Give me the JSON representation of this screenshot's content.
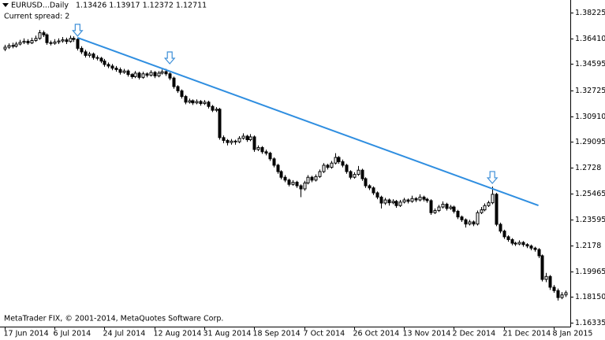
{
  "chart_data": {
    "type": "candlestick",
    "symbol_header": "EURUSD...Daily",
    "ohlc_header": "1.13426 1.13917 1.12372 1.12711",
    "spread": "Current spread: 2",
    "copyright": "MetaTrader FIX, © 2001-2014, MetaQuotes Software Corp.",
    "bull_color": "#ffffff",
    "bear_color": "#000000",
    "xlim": [
      -1.2,
      147.3
    ],
    "ylim": [
      1.1606,
      1.3911
    ],
    "yticks": [
      1.38225,
      {
        "value": 1.3641,
        "label": "1.36410"
      },
      1.34595,
      1.32725,
      {
        "value": 1.3091,
        "label": "1.30910"
      },
      1.29095,
      1.2728,
      1.25465,
      1.23595,
      1.2178,
      1.19965,
      {
        "value": 1.1815,
        "label": "1.18150"
      },
      1.16335
    ],
    "xticks": [
      {
        "value": 0,
        "label": "17 Jun 2014"
      },
      {
        "value": 13,
        "label": "6 Jul 2014"
      },
      {
        "value": 26,
        "label": "24 Jul 2014"
      },
      {
        "value": 39,
        "label": "12 Aug 2014"
      },
      {
        "value": 52,
        "label": "31 Aug 2014"
      },
      {
        "value": 65,
        "label": "18 Sep 2014"
      },
      {
        "value": 78,
        "label": "7 Oct 2014"
      },
      {
        "value": 91,
        "label": "26 Oct 2014"
      },
      {
        "value": 104,
        "label": "13 Nov 2014"
      },
      {
        "value": 117,
        "label": "2 Dec 2014"
      },
      {
        "value": 130,
        "label": "21 Dec 2014"
      },
      {
        "value": 143,
        "label": "8 Jan 2015"
      }
    ],
    "trendline": {
      "color": "#2f8ee0",
      "x": [
        19,
        139
      ],
      "y": [
        1.3645,
        1.2461
      ]
    },
    "arrows": {
      "color": "#3d8fd8",
      "x": [
        19,
        43,
        127
      ],
      "y": [
        1.3645,
        1.345,
        1.2606
      ]
    },
    "candles": [
      [
        1.3565,
        1.3595,
        1.355,
        1.3578
      ],
      [
        1.3578,
        1.3605,
        1.3565,
        1.359
      ],
      [
        1.359,
        1.361,
        1.357,
        1.3585
      ],
      [
        1.3585,
        1.3615,
        1.3575,
        1.36
      ],
      [
        1.36,
        1.363,
        1.359,
        1.3612
      ],
      [
        1.3612,
        1.364,
        1.36,
        1.362
      ],
      [
        1.362,
        1.3635,
        1.3595,
        1.3608
      ],
      [
        1.3608,
        1.3645,
        1.36,
        1.3625
      ],
      [
        1.3625,
        1.366,
        1.3615,
        1.364
      ],
      [
        1.364,
        1.37,
        1.363,
        1.368
      ],
      [
        1.368,
        1.3695,
        1.365,
        1.3665
      ],
      [
        1.3665,
        1.3675,
        1.3595,
        1.361
      ],
      [
        1.361,
        1.3625,
        1.359,
        1.3605
      ],
      [
        1.3605,
        1.3635,
        1.3595,
        1.3615
      ],
      [
        1.3615,
        1.364,
        1.36,
        1.3622
      ],
      [
        1.3622,
        1.365,
        1.361,
        1.363
      ],
      [
        1.363,
        1.3645,
        1.36,
        1.3618
      ],
      [
        1.3618,
        1.366,
        1.361,
        1.364
      ],
      [
        1.364,
        1.3655,
        1.3615,
        1.3633
      ],
      [
        1.3633,
        1.3645,
        1.3555,
        1.357
      ],
      [
        1.357,
        1.3585,
        1.353,
        1.3545
      ],
      [
        1.3545,
        1.356,
        1.3505,
        1.352
      ],
      [
        1.352,
        1.3545,
        1.3505,
        1.353
      ],
      [
        1.353,
        1.354,
        1.349,
        1.3505
      ],
      [
        1.3505,
        1.352,
        1.3485,
        1.35
      ],
      [
        1.35,
        1.351,
        1.3465,
        1.348
      ],
      [
        1.348,
        1.3495,
        1.344,
        1.3456
      ],
      [
        1.3456,
        1.347,
        1.343,
        1.3445
      ],
      [
        1.3445,
        1.346,
        1.3415,
        1.343
      ],
      [
        1.343,
        1.3445,
        1.3405,
        1.342
      ],
      [
        1.342,
        1.3435,
        1.3385,
        1.34
      ],
      [
        1.34,
        1.3425,
        1.339,
        1.341
      ],
      [
        1.341,
        1.342,
        1.337,
        1.3385
      ],
      [
        1.3385,
        1.3395,
        1.3355,
        1.337
      ],
      [
        1.337,
        1.341,
        1.336,
        1.3395
      ],
      [
        1.3395,
        1.3405,
        1.335,
        1.3365
      ],
      [
        1.3365,
        1.3405,
        1.3355,
        1.339
      ],
      [
        1.339,
        1.34,
        1.3365,
        1.338
      ],
      [
        1.338,
        1.3415,
        1.337,
        1.34
      ],
      [
        1.34,
        1.341,
        1.336,
        1.3375
      ],
      [
        1.3375,
        1.341,
        1.3365,
        1.3395
      ],
      [
        1.3395,
        1.342,
        1.3385,
        1.3405
      ],
      [
        1.3405,
        1.3425,
        1.3375,
        1.339
      ],
      [
        1.339,
        1.34,
        1.3345,
        1.336
      ],
      [
        1.336,
        1.337,
        1.3285,
        1.33
      ],
      [
        1.33,
        1.331,
        1.3255,
        1.327
      ],
      [
        1.327,
        1.328,
        1.3215,
        1.323
      ],
      [
        1.323,
        1.324,
        1.3175,
        1.319
      ],
      [
        1.319,
        1.3215,
        1.318,
        1.32
      ],
      [
        1.32,
        1.321,
        1.317,
        1.3185
      ],
      [
        1.3185,
        1.321,
        1.3175,
        1.3195
      ],
      [
        1.3195,
        1.3205,
        1.3165,
        1.318
      ],
      [
        1.318,
        1.3205,
        1.317,
        1.319
      ],
      [
        1.319,
        1.32,
        1.3145,
        1.316
      ],
      [
        1.316,
        1.317,
        1.312,
        1.3133
      ],
      [
        1.3133,
        1.3155,
        1.312,
        1.314
      ],
      [
        1.314,
        1.315,
        1.2925,
        1.294
      ],
      [
        1.294,
        1.2955,
        1.29,
        1.292
      ],
      [
        1.292,
        1.293,
        1.2885,
        1.2905
      ],
      [
        1.2905,
        1.293,
        1.289,
        1.2915
      ],
      [
        1.2915,
        1.2925,
        1.289,
        1.291
      ],
      [
        1.291,
        1.295,
        1.29,
        1.2935
      ],
      [
        1.2935,
        1.297,
        1.2925,
        1.295
      ],
      [
        1.295,
        1.296,
        1.291,
        1.2925
      ],
      [
        1.2925,
        1.2965,
        1.2915,
        1.2945
      ],
      [
        1.2945,
        1.2955,
        1.284,
        1.2856
      ],
      [
        1.2856,
        1.2885,
        1.2845,
        1.287
      ],
      [
        1.287,
        1.288,
        1.2825,
        1.284
      ],
      [
        1.284,
        1.2855,
        1.2815,
        1.283
      ],
      [
        1.283,
        1.284,
        1.2775,
        1.279
      ],
      [
        1.279,
        1.28,
        1.273,
        1.2745
      ],
      [
        1.2745,
        1.2755,
        1.2685,
        1.27
      ],
      [
        1.27,
        1.271,
        1.2645,
        1.266
      ],
      [
        1.266,
        1.2675,
        1.2625,
        1.264
      ],
      [
        1.264,
        1.265,
        1.2595,
        1.261
      ],
      [
        1.261,
        1.264,
        1.26,
        1.2625
      ],
      [
        1.2625,
        1.2635,
        1.2585,
        1.26
      ],
      [
        1.26,
        1.261,
        1.252,
        1.2578
      ],
      [
        1.2578,
        1.2635,
        1.2565,
        1.262
      ],
      [
        1.262,
        1.2675,
        1.261,
        1.266
      ],
      [
        1.266,
        1.267,
        1.2625,
        1.264
      ],
      [
        1.264,
        1.268,
        1.263,
        1.2665
      ],
      [
        1.2665,
        1.2715,
        1.2655,
        1.27
      ],
      [
        1.27,
        1.276,
        1.269,
        1.2745
      ],
      [
        1.2745,
        1.2755,
        1.2715,
        1.273
      ],
      [
        1.273,
        1.2775,
        1.272,
        1.276
      ],
      [
        1.276,
        1.283,
        1.275,
        1.28
      ],
      [
        1.28,
        1.281,
        1.2755,
        1.277
      ],
      [
        1.277,
        1.2785,
        1.273,
        1.2745
      ],
      [
        1.2745,
        1.2755,
        1.2685,
        1.27
      ],
      [
        1.27,
        1.271,
        1.2645,
        1.266
      ],
      [
        1.266,
        1.2695,
        1.265,
        1.268
      ],
      [
        1.268,
        1.274,
        1.267,
        1.271
      ],
      [
        1.271,
        1.272,
        1.2635,
        1.265
      ],
      [
        1.265,
        1.266,
        1.2585,
        1.26
      ],
      [
        1.26,
        1.261,
        1.257,
        1.2585
      ],
      [
        1.2585,
        1.2595,
        1.2535,
        1.255
      ],
      [
        1.255,
        1.256,
        1.2505,
        1.252
      ],
      [
        1.252,
        1.253,
        1.244,
        1.2478
      ],
      [
        1.2478,
        1.2515,
        1.2465,
        1.25
      ],
      [
        1.25,
        1.251,
        1.246,
        1.248
      ],
      [
        1.248,
        1.2505,
        1.247,
        1.249
      ],
      [
        1.249,
        1.25,
        1.2445,
        1.246
      ],
      [
        1.246,
        1.25,
        1.245,
        1.2485
      ],
      [
        1.2485,
        1.2515,
        1.2475,
        1.25
      ],
      [
        1.25,
        1.251,
        1.2475,
        1.249
      ],
      [
        1.249,
        1.253,
        1.248,
        1.251
      ],
      [
        1.251,
        1.252,
        1.2485,
        1.25
      ],
      [
        1.25,
        1.254,
        1.249,
        1.252
      ],
      [
        1.252,
        1.253,
        1.249,
        1.2505
      ],
      [
        1.2505,
        1.2515,
        1.248,
        1.2495
      ],
      [
        1.2495,
        1.2505,
        1.2395,
        1.241
      ],
      [
        1.241,
        1.244,
        1.24,
        1.2425
      ],
      [
        1.2425,
        1.2465,
        1.2415,
        1.245
      ],
      [
        1.245,
        1.249,
        1.244,
        1.247
      ],
      [
        1.247,
        1.248,
        1.2425,
        1.244
      ],
      [
        1.244,
        1.2465,
        1.243,
        1.245
      ],
      [
        1.245,
        1.246,
        1.2405,
        1.242
      ],
      [
        1.242,
        1.243,
        1.2365,
        1.238
      ],
      [
        1.238,
        1.239,
        1.2345,
        1.236
      ],
      [
        1.236,
        1.237,
        1.2305,
        1.233
      ],
      [
        1.233,
        1.236,
        1.232,
        1.2345
      ],
      [
        1.2345,
        1.2355,
        1.2315,
        1.233
      ],
      [
        1.233,
        1.2425,
        1.232,
        1.241
      ],
      [
        1.241,
        1.245,
        1.24,
        1.243
      ],
      [
        1.243,
        1.2475,
        1.242,
        1.246
      ],
      [
        1.246,
        1.2495,
        1.245,
        1.248
      ],
      [
        1.248,
        1.2594,
        1.247,
        1.254
      ],
      [
        1.254,
        1.255,
        1.2315,
        1.2328
      ],
      [
        1.2328,
        1.234,
        1.2265,
        1.228
      ],
      [
        1.228,
        1.229,
        1.2225,
        1.224
      ],
      [
        1.224,
        1.225,
        1.2205,
        1.222
      ],
      [
        1.222,
        1.223,
        1.218,
        1.2195
      ],
      [
        1.2195,
        1.2205,
        1.2175,
        1.2189
      ],
      [
        1.2189,
        1.2215,
        1.218,
        1.22
      ],
      [
        1.22,
        1.221,
        1.217,
        1.2185
      ],
      [
        1.2185,
        1.2195,
        1.216,
        1.2175
      ],
      [
        1.2175,
        1.2185,
        1.2145,
        1.216
      ],
      [
        1.216,
        1.217,
        1.2135,
        1.215
      ],
      [
        1.215,
        1.216,
        1.209,
        1.2106
      ],
      [
        1.2106,
        1.2115,
        1.1925,
        1.1939
      ],
      [
        1.1939,
        1.1985,
        1.192,
        1.196
      ],
      [
        1.196,
        1.197,
        1.1865,
        1.1884
      ],
      [
        1.1884,
        1.19,
        1.1845,
        1.186
      ],
      [
        1.186,
        1.1875,
        1.179,
        1.1811
      ],
      [
        1.1811,
        1.185,
        1.18,
        1.183
      ],
      [
        1.183,
        1.186,
        1.1815,
        1.1845
      ]
    ]
  }
}
